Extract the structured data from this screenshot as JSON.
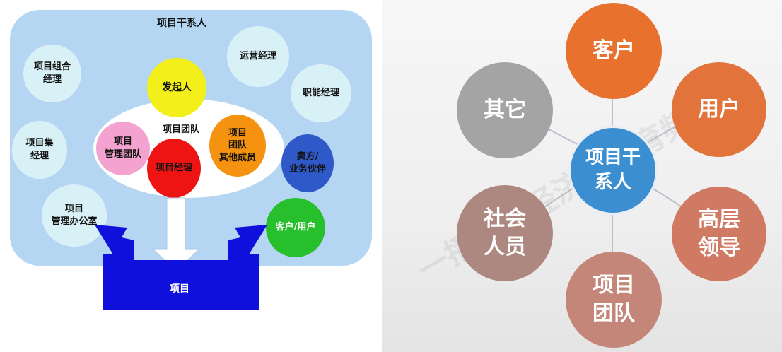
{
  "left": {
    "title": "项目干系人",
    "outer_nodes": [
      {
        "id": "project-portfolio-manager",
        "label": "项目组合\n经理"
      },
      {
        "id": "program-manager",
        "label": "项目集\n经理"
      },
      {
        "id": "pmo",
        "label": "项目\n管理办公室"
      },
      {
        "id": "operations-manager",
        "label": "运营经理"
      },
      {
        "id": "functional-manager",
        "label": "职能经理"
      }
    ],
    "team_label": "项目团队",
    "inner_nodes": [
      {
        "id": "sponsor",
        "label": "发起人",
        "color": "#f2ef1a",
        "text": "#111"
      },
      {
        "id": "pm-team",
        "label": "项目\n管理团队",
        "color": "#f4a2d0",
        "text": "#111"
      },
      {
        "id": "project-manager",
        "label": "项目经理",
        "color": "#ef1414",
        "text": "#111"
      },
      {
        "id": "other-members",
        "label": "项目\n团队\n其他成员",
        "color": "#f5920f",
        "text": "#111"
      }
    ],
    "seller_node": {
      "label": "卖方/\n业务伙伴",
      "color": "#2f58c8"
    },
    "customer_node": {
      "label": "客户/用户",
      "color": "#28bf2c"
    },
    "project_bar": "项目"
  },
  "right": {
    "center": {
      "label": "项目干\n系人",
      "color": "#3b8fd0"
    },
    "nodes": [
      {
        "id": "customer",
        "label": "客户",
        "color": "#e8712e"
      },
      {
        "id": "user",
        "label": "用户",
        "color": "#e2733a"
      },
      {
        "id": "senior-leadership",
        "label": "高层\n领导",
        "color": "#d07a63"
      },
      {
        "id": "project-team",
        "label": "项目\n团队",
        "color": "#c48678"
      },
      {
        "id": "public",
        "label": "社会\n人员",
        "color": "#ad8880"
      },
      {
        "id": "others",
        "label": "其它",
        "color": "#a4a4a4"
      }
    ],
    "line_color": "#b9bfcc"
  },
  "watermark": "一播网合经济科教育频道"
}
